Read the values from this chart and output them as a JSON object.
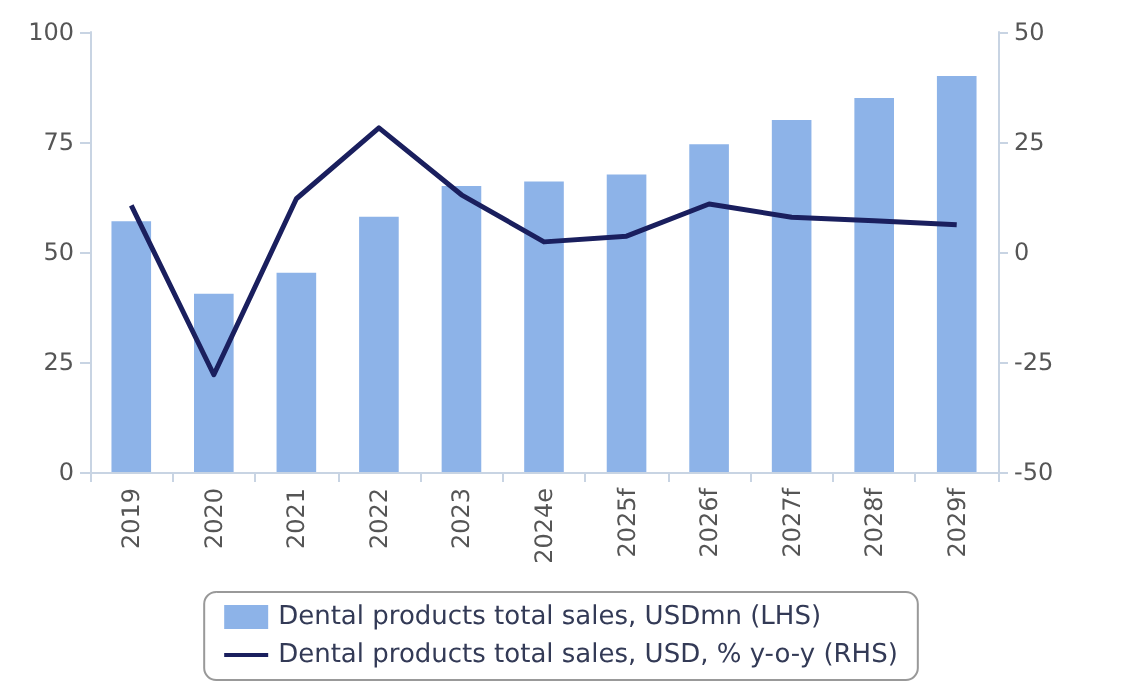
{
  "chart_data": {
    "type": "bar",
    "categories": [
      "2019",
      "2020",
      "2021",
      "2022",
      "2023",
      "2024e",
      "2025f",
      "2026f",
      "2027f",
      "2028f",
      "2029f"
    ],
    "series": [
      {
        "name": "Dental products total sales, USDmn (LHS)",
        "color": "#8db3e8",
        "values": [
          57,
          40.5,
          45.3,
          58,
          65,
          66,
          67.6,
          74.5,
          80,
          85,
          90
        ]
      },
      {
        "name": "Dental products total sales, USD, % y-o-y (RHS)",
        "type": "line",
        "axis": "y2",
        "color": "#1a1f5e",
        "values": [
          10.6,
          -27.9,
          12.1,
          28.2,
          13,
          2.3,
          3.6,
          10.9,
          7.9,
          7.1,
          6.2
        ]
      }
    ],
    "ylim": [
      0,
      100
    ],
    "yticks": [
      0,
      25,
      50,
      75,
      100
    ],
    "y2lim": [
      -50,
      50
    ],
    "y2ticks": [
      -50,
      -25,
      0,
      25,
      50
    ],
    "grid": false,
    "legend": "bottom",
    "marker": "none",
    "line_style": "solid"
  }
}
